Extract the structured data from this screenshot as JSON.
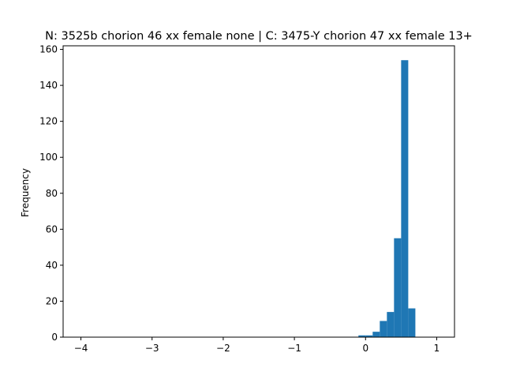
{
  "chart_data": {
    "type": "bar",
    "title": "N: 3525b chorion 46 xx female none | C: 3475-Y chorion 47 xx female 13+",
    "xlabel": "",
    "ylabel": "Frequency",
    "xlim": [
      -4.25,
      1.25
    ],
    "ylim": [
      0,
      162
    ],
    "xticks": [
      -4,
      -3,
      -2,
      -1,
      0,
      1
    ],
    "xtick_labels": [
      "−4",
      "−3",
      "−2",
      "−1",
      "0",
      "1"
    ],
    "yticks": [
      0,
      20,
      40,
      60,
      80,
      100,
      120,
      140,
      160
    ],
    "ytick_labels": [
      "0",
      "20",
      "40",
      "60",
      "80",
      "100",
      "120",
      "140",
      "160"
    ],
    "grid": false,
    "bar_color": "#1f77b4",
    "bin_width": 0.1,
    "bins": [
      {
        "x0": -0.1,
        "x1": 0.0,
        "value": 1
      },
      {
        "x0": 0.0,
        "x1": 0.1,
        "value": 1
      },
      {
        "x0": 0.1,
        "x1": 0.2,
        "value": 3
      },
      {
        "x0": 0.2,
        "x1": 0.3,
        "value": 9
      },
      {
        "x0": 0.3,
        "x1": 0.4,
        "value": 14
      },
      {
        "x0": 0.4,
        "x1": 0.5,
        "value": 55
      },
      {
        "x0": 0.5,
        "x1": 0.6,
        "value": 154
      },
      {
        "x0": 0.6,
        "x1": 0.7,
        "value": 16
      }
    ]
  }
}
